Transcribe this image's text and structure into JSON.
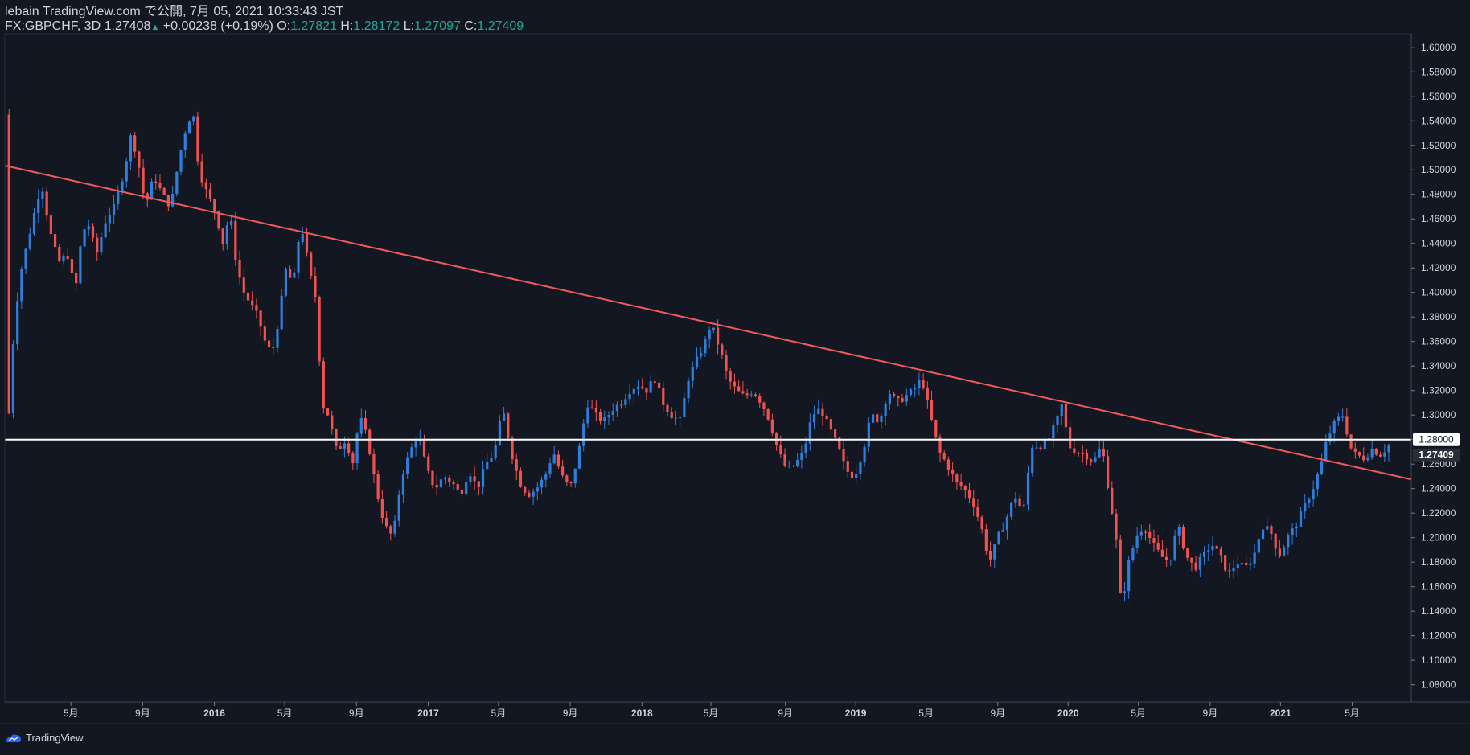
{
  "header": {
    "published": "lebain TradingView.com で公開, 7月 05, 2021 10:33:43 JST",
    "symbol": "FX:GBPCHF, 3D",
    "last": "1.27408",
    "arrow": "▲",
    "change": "+0.00238 (+0.19%)",
    "o_label": "O:",
    "o_value": "1.27821",
    "h_label": "H:",
    "h_value": "1.28172",
    "l_label": "L:",
    "l_value": "1.27097",
    "c_label": "C:",
    "c_value": "1.27409"
  },
  "footer": {
    "brand": "TradingView"
  },
  "colors": {
    "background": "#131722",
    "up": "#2f7ddc",
    "down": "#ef5350",
    "trendline": "#f05a5a",
    "hline": "#ffffff",
    "axis_text": "#d1d4dc",
    "ohlc_value": "#26a69a"
  },
  "chart_data": {
    "type": "candlestick",
    "symbol": "FX:GBPCHF",
    "interval": "3D",
    "y_ticks": [
      "1.60000",
      "1.58000",
      "1.56000",
      "1.54000",
      "1.52000",
      "1.50000",
      "1.48000",
      "1.46000",
      "1.44000",
      "1.42000",
      "1.40000",
      "1.38000",
      "1.36000",
      "1.34000",
      "1.32000",
      "1.30000",
      "1.28000",
      "1.26000",
      "1.24000",
      "1.22000",
      "1.20000",
      "1.18000",
      "1.16000",
      "1.14000",
      "1.12000",
      "1.10000",
      "1.08000"
    ],
    "ylim": [
      1.066,
      1.611
    ],
    "x_ticks": [
      {
        "label": "5月",
        "t": 0.047
      },
      {
        "label": "9月",
        "t": 0.098
      },
      {
        "label": "2016",
        "t": 0.149
      },
      {
        "label": "5月",
        "t": 0.199
      },
      {
        "label": "9月",
        "t": 0.25
      },
      {
        "label": "2017",
        "t": 0.301
      },
      {
        "label": "5月",
        "t": 0.351
      },
      {
        "label": "9月",
        "t": 0.402
      },
      {
        "label": "2018",
        "t": 0.453
      },
      {
        "label": "5月",
        "t": 0.502
      },
      {
        "label": "9月",
        "t": 0.555
      },
      {
        "label": "2019",
        "t": 0.605
      },
      {
        "label": "5月",
        "t": 0.655
      },
      {
        "label": "9月",
        "t": 0.706
      },
      {
        "label": "2020",
        "t": 0.756
      },
      {
        "label": "5月",
        "t": 0.806
      },
      {
        "label": "9月",
        "t": 0.857
      },
      {
        "label": "2021",
        "t": 0.907
      },
      {
        "label": "5月",
        "t": 0.958
      }
    ],
    "price_path": [
      [
        0.0,
        1.545
      ],
      [
        0.003,
        1.3
      ],
      [
        0.007,
        1.38
      ],
      [
        0.012,
        1.42
      ],
      [
        0.02,
        1.46
      ],
      [
        0.026,
        1.49
      ],
      [
        0.032,
        1.45
      ],
      [
        0.038,
        1.425
      ],
      [
        0.045,
        1.43
      ],
      [
        0.05,
        1.4
      ],
      [
        0.055,
        1.45
      ],
      [
        0.06,
        1.455
      ],
      [
        0.065,
        1.43
      ],
      [
        0.072,
        1.46
      ],
      [
        0.078,
        1.47
      ],
      [
        0.085,
        1.5
      ],
      [
        0.09,
        1.53
      ],
      [
        0.095,
        1.505
      ],
      [
        0.1,
        1.47
      ],
      [
        0.106,
        1.495
      ],
      [
        0.112,
        1.48
      ],
      [
        0.118,
        1.47
      ],
      [
        0.124,
        1.51
      ],
      [
        0.13,
        1.54
      ],
      [
        0.134,
        1.545
      ],
      [
        0.138,
        1.5
      ],
      [
        0.144,
        1.48
      ],
      [
        0.15,
        1.465
      ],
      [
        0.155,
        1.44
      ],
      [
        0.16,
        1.465
      ],
      [
        0.165,
        1.42
      ],
      [
        0.17,
        1.4
      ],
      [
        0.175,
        1.39
      ],
      [
        0.18,
        1.38
      ],
      [
        0.185,
        1.36
      ],
      [
        0.19,
        1.35
      ],
      [
        0.195,
        1.38
      ],
      [
        0.2,
        1.42
      ],
      [
        0.205,
        1.405
      ],
      [
        0.208,
        1.44
      ],
      [
        0.212,
        1.45
      ],
      [
        0.216,
        1.42
      ],
      [
        0.222,
        1.39
      ],
      [
        0.225,
        1.31
      ],
      [
        0.23,
        1.3
      ],
      [
        0.236,
        1.27
      ],
      [
        0.242,
        1.28
      ],
      [
        0.248,
        1.26
      ],
      [
        0.252,
        1.3
      ],
      [
        0.258,
        1.28
      ],
      [
        0.264,
        1.24
      ],
      [
        0.27,
        1.21
      ],
      [
        0.276,
        1.2
      ],
      [
        0.282,
        1.25
      ],
      [
        0.288,
        1.27
      ],
      [
        0.294,
        1.285
      ],
      [
        0.3,
        1.255
      ],
      [
        0.306,
        1.24
      ],
      [
        0.312,
        1.25
      ],
      [
        0.318,
        1.245
      ],
      [
        0.324,
        1.235
      ],
      [
        0.33,
        1.255
      ],
      [
        0.336,
        1.24
      ],
      [
        0.342,
        1.26
      ],
      [
        0.348,
        1.27
      ],
      [
        0.354,
        1.305
      ],
      [
        0.36,
        1.27
      ],
      [
        0.366,
        1.245
      ],
      [
        0.372,
        1.235
      ],
      [
        0.378,
        1.24
      ],
      [
        0.384,
        1.25
      ],
      [
        0.39,
        1.27
      ],
      [
        0.396,
        1.25
      ],
      [
        0.402,
        1.24
      ],
      [
        0.408,
        1.27
      ],
      [
        0.414,
        1.31
      ],
      [
        0.42,
        1.3
      ],
      [
        0.426,
        1.295
      ],
      [
        0.432,
        1.305
      ],
      [
        0.438,
        1.31
      ],
      [
        0.444,
        1.32
      ],
      [
        0.45,
        1.325
      ],
      [
        0.456,
        1.32
      ],
      [
        0.462,
        1.33
      ],
      [
        0.468,
        1.31
      ],
      [
        0.474,
        1.3
      ],
      [
        0.48,
        1.295
      ],
      [
        0.486,
        1.33
      ],
      [
        0.492,
        1.345
      ],
      [
        0.498,
        1.36
      ],
      [
        0.502,
        1.375
      ],
      [
        0.508,
        1.355
      ],
      [
        0.514,
        1.33
      ],
      [
        0.52,
        1.32
      ],
      [
        0.526,
        1.315
      ],
      [
        0.532,
        1.32
      ],
      [
        0.538,
        1.31
      ],
      [
        0.544,
        1.295
      ],
      [
        0.55,
        1.27
      ],
      [
        0.556,
        1.255
      ],
      [
        0.562,
        1.26
      ],
      [
        0.568,
        1.27
      ],
      [
        0.574,
        1.3
      ],
      [
        0.58,
        1.305
      ],
      [
        0.586,
        1.29
      ],
      [
        0.592,
        1.275
      ],
      [
        0.598,
        1.255
      ],
      [
        0.604,
        1.25
      ],
      [
        0.61,
        1.27
      ],
      [
        0.616,
        1.3
      ],
      [
        0.622,
        1.295
      ],
      [
        0.628,
        1.32
      ],
      [
        0.634,
        1.31
      ],
      [
        0.64,
        1.315
      ],
      [
        0.646,
        1.32
      ],
      [
        0.652,
        1.33
      ],
      [
        0.658,
        1.3
      ],
      [
        0.664,
        1.27
      ],
      [
        0.67,
        1.26
      ],
      [
        0.676,
        1.245
      ],
      [
        0.682,
        1.24
      ],
      [
        0.688,
        1.23
      ],
      [
        0.694,
        1.21
      ],
      [
        0.7,
        1.18
      ],
      [
        0.706,
        1.2
      ],
      [
        0.712,
        1.215
      ],
      [
        0.718,
        1.235
      ],
      [
        0.724,
        1.22
      ],
      [
        0.73,
        1.275
      ],
      [
        0.736,
        1.275
      ],
      [
        0.742,
        1.28
      ],
      [
        0.748,
        1.295
      ],
      [
        0.752,
        1.31
      ],
      [
        0.756,
        1.275
      ],
      [
        0.762,
        1.27
      ],
      [
        0.768,
        1.268
      ],
      [
        0.774,
        1.262
      ],
      [
        0.78,
        1.275
      ],
      [
        0.786,
        1.23
      ],
      [
        0.79,
        1.2
      ],
      [
        0.794,
        1.14
      ],
      [
        0.798,
        1.175
      ],
      [
        0.804,
        1.2
      ],
      [
        0.81,
        1.21
      ],
      [
        0.816,
        1.195
      ],
      [
        0.822,
        1.185
      ],
      [
        0.828,
        1.18
      ],
      [
        0.834,
        1.21
      ],
      [
        0.84,
        1.185
      ],
      [
        0.846,
        1.175
      ],
      [
        0.852,
        1.185
      ],
      [
        0.858,
        1.195
      ],
      [
        0.864,
        1.185
      ],
      [
        0.87,
        1.17
      ],
      [
        0.876,
        1.18
      ],
      [
        0.882,
        1.175
      ],
      [
        0.888,
        1.185
      ],
      [
        0.894,
        1.21
      ],
      [
        0.9,
        1.205
      ],
      [
        0.906,
        1.185
      ],
      [
        0.912,
        1.2
      ],
      [
        0.918,
        1.21
      ],
      [
        0.924,
        1.225
      ],
      [
        0.93,
        1.24
      ],
      [
        0.936,
        1.26
      ],
      [
        0.94,
        1.28
      ],
      [
        0.946,
        1.295
      ],
      [
        0.952,
        1.3
      ],
      [
        0.956,
        1.275
      ],
      [
        0.96,
        1.268
      ],
      [
        0.966,
        1.265
      ],
      [
        0.972,
        1.272
      ],
      [
        0.978,
        1.268
      ],
      [
        0.984,
        1.275
      ]
    ],
    "trendline": {
      "from": [
        0.0,
        1.5035
      ],
      "to": [
        1.0,
        1.2475
      ]
    },
    "horizontal_line": 1.28,
    "last_price_label": "1.27409",
    "hline_label": "1.28000"
  }
}
